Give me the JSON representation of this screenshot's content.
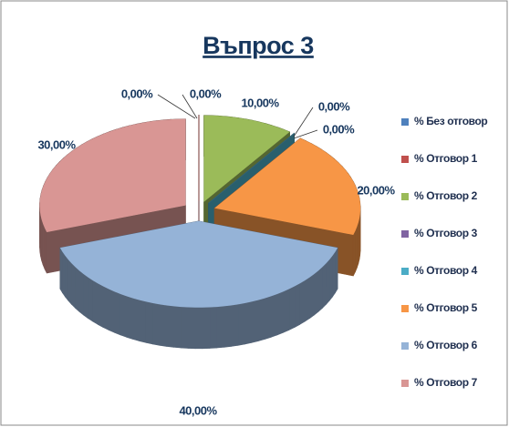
{
  "chart_data": {
    "type": "pie",
    "title": "Въпрос 3",
    "categories": [
      "% Без отговор",
      "% Отговор 1",
      "% Отговор 2",
      "% Отговор 3",
      "% Отговор 4",
      "% Отговор 5",
      "% Отговор 6",
      "% Отговор 7"
    ],
    "values": [
      0,
      0,
      10,
      0,
      0,
      20,
      40,
      30
    ],
    "value_labels": [
      "0,00%",
      "0,00%",
      "10,00%",
      "0,00%",
      "0,00%",
      "20,00%",
      "40,00%",
      "30,00%"
    ],
    "colors": [
      "#4f81bd",
      "#c0504d",
      "#9bbb59",
      "#8064a2",
      "#4bacc6",
      "#f79646",
      "#95b3d7",
      "#d99694"
    ],
    "legend": "right"
  }
}
